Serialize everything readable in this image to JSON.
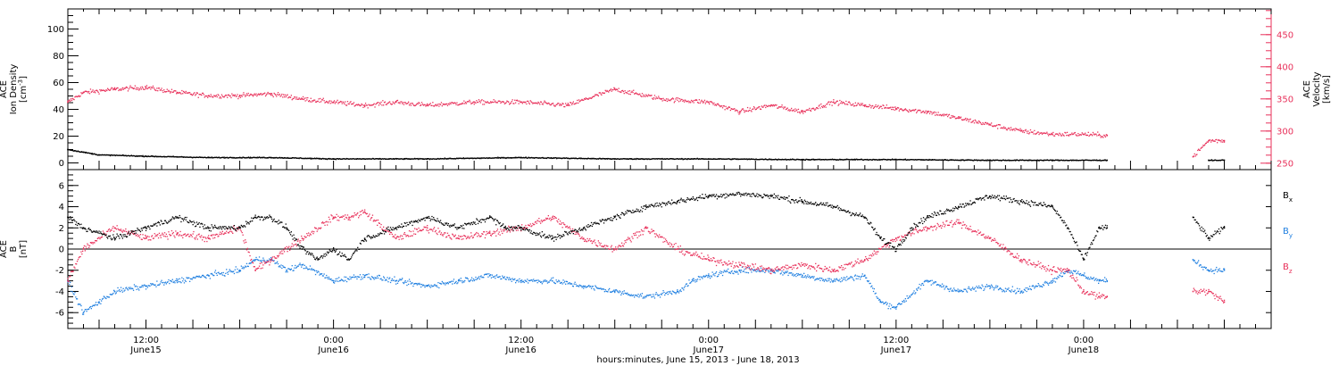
{
  "colors": {
    "black": "#000000",
    "red": "#e8305a",
    "blue": "#1f7fe0"
  },
  "footer": {
    "xlabel": "hours:minutes, June 15, 2013 - June 18, 2013"
  },
  "x_axis": {
    "tick_labels": [
      {
        "t": 12,
        "time": "12:00",
        "date": "June15"
      },
      {
        "t": 24,
        "time": "0:00",
        "date": "June16"
      },
      {
        "t": 36,
        "time": "12:00",
        "date": "June16"
      },
      {
        "t": 48,
        "time": "0:00",
        "date": "June17"
      },
      {
        "t": 60,
        "time": "12:00",
        "date": "June17"
      },
      {
        "t": 72,
        "time": "0:00",
        "date": "June18"
      }
    ]
  },
  "chart_data": [
    {
      "type": "scatter",
      "panel": "top",
      "xlim": [
        7,
        84
      ],
      "left_axis": {
        "label_lines": [
          "ACE",
          "Ion Density",
          "[cm-3]"
        ],
        "ylim": [
          -5,
          115
        ],
        "ticks": [
          0,
          20,
          40,
          60,
          80,
          100
        ]
      },
      "right_axis": {
        "label_lines": [
          "ACE",
          "Velocity",
          "[km/s]"
        ],
        "ylim": [
          240,
          490
        ],
        "ticks": [
          250,
          300,
          350,
          400,
          450
        ],
        "color": "#e8305a"
      },
      "series": [
        {
          "axis": "left",
          "color": "#000000",
          "x": [
            7,
            8,
            9,
            12,
            16,
            20,
            24,
            30,
            36,
            42,
            48,
            54,
            60,
            66,
            70,
            73.5,
            78,
            80,
            81
          ],
          "y": [
            10,
            8,
            6,
            5,
            4,
            4,
            3,
            3,
            4,
            3,
            3,
            2.5,
            2.5,
            2,
            2,
            2,
            null,
            2,
            2
          ]
        },
        {
          "axis": "right",
          "color": "#e8305a",
          "x": [
            7,
            8,
            10,
            12,
            14,
            16,
            18,
            20,
            22,
            24,
            26,
            28,
            30,
            33,
            36,
            39,
            42,
            45,
            48,
            50,
            52,
            54,
            56,
            58,
            60,
            62,
            64,
            66,
            68,
            70,
            72,
            73.5,
            78,
            79,
            80,
            81
          ],
          "y": [
            345,
            360,
            365,
            368,
            360,
            355,
            355,
            358,
            350,
            345,
            340,
            345,
            340,
            345,
            345,
            340,
            365,
            350,
            345,
            330,
            340,
            330,
            345,
            340,
            335,
            330,
            320,
            310,
            300,
            295,
            295,
            293,
            null,
            260,
            285,
            285
          ]
        }
      ]
    },
    {
      "type": "scatter",
      "panel": "bottom",
      "xlim": [
        7,
        84
      ],
      "left_axis": {
        "label_lines": [
          "ACE",
          "B",
          "[nT]"
        ],
        "ylim": [
          -7.5,
          7.5
        ],
        "ticks": [
          -6,
          -4,
          -2,
          0,
          2,
          4,
          6
        ]
      },
      "zero_line": true,
      "series": [
        {
          "name": "Bx",
          "color": "#000000",
          "x": [
            7,
            8,
            10,
            12,
            14,
            16,
            18,
            19,
            20,
            21,
            22,
            23,
            24,
            25,
            26,
            28,
            30,
            32,
            34,
            35,
            36,
            38,
            40,
            42,
            44,
            46,
            48,
            50,
            52,
            54,
            56,
            58,
            59,
            60,
            61,
            62,
            64,
            66,
            68,
            70,
            71,
            72,
            73,
            73.5,
            78,
            79,
            80,
            81
          ],
          "y": [
            3,
            2,
            1,
            2,
            3,
            2,
            2,
            3,
            3,
            2,
            0,
            -1,
            0,
            -1,
            1,
            2,
            3,
            2,
            3,
            2,
            2,
            1,
            2,
            3,
            4,
            4.5,
            5,
            5.2,
            5,
            4.5,
            4,
            3,
            1,
            0,
            2,
            3,
            4,
            5,
            4.5,
            4,
            2,
            -1,
            2,
            2,
            null,
            3,
            1,
            2
          ]
        },
        {
          "name": "By",
          "color": "#1f7fe0",
          "x": [
            7,
            8,
            9,
            10,
            12,
            14,
            16,
            18,
            19,
            20,
            21,
            22,
            24,
            26,
            28,
            30,
            32,
            34,
            36,
            38,
            40,
            42,
            44,
            46,
            47,
            48,
            50,
            52,
            54,
            56,
            58,
            59,
            60,
            62,
            64,
            66,
            68,
            70,
            71,
            72,
            73,
            73.5,
            78,
            79,
            80,
            81
          ],
          "y": [
            -3,
            -6,
            -5,
            -4,
            -3.5,
            -3,
            -2.5,
            -2,
            -1,
            -1,
            -2,
            -1.5,
            -3,
            -2.5,
            -3,
            -3.5,
            -3,
            -2.5,
            -3,
            -3,
            -3.5,
            -4,
            -4.5,
            -4,
            -3,
            -2.5,
            -2,
            -2,
            -2.5,
            -3,
            -2.5,
            -5,
            -5.5,
            -3,
            -4,
            -3.5,
            -4,
            -3,
            -2,
            -2.5,
            -3,
            -3,
            null,
            -1,
            -2,
            -2
          ]
        },
        {
          "name": "Bz",
          "color": "#e8305a",
          "x": [
            7,
            8,
            10,
            12,
            14,
            16,
            18,
            19,
            20,
            22,
            24,
            25,
            26,
            28,
            30,
            32,
            34,
            36,
            38,
            40,
            42,
            44,
            46,
            48,
            50,
            52,
            54,
            56,
            58,
            60,
            62,
            64,
            66,
            68,
            70,
            71,
            72,
            73,
            73.5,
            78,
            79,
            80,
            81
          ],
          "y": [
            -3,
            0,
            2,
            1,
            1.5,
            1,
            2,
            -2,
            -1,
            1,
            3,
            3,
            3.5,
            1,
            2,
            1,
            1.5,
            2,
            3,
            1,
            0,
            2,
            0,
            -1,
            -1.5,
            -2,
            -1.5,
            -2,
            -1,
            1,
            2,
            2.5,
            1,
            -1,
            -2,
            -2,
            -4,
            -4.5,
            -4.5,
            null,
            -4,
            -4,
            -5
          ]
        }
      ],
      "legend": [
        {
          "label": "B",
          "sub": "x",
          "color": "#000000"
        },
        {
          "label": "B",
          "sub": "y",
          "color": "#1f7fe0"
        },
        {
          "label": "B",
          "sub": "z",
          "color": "#e8305a"
        }
      ]
    }
  ]
}
